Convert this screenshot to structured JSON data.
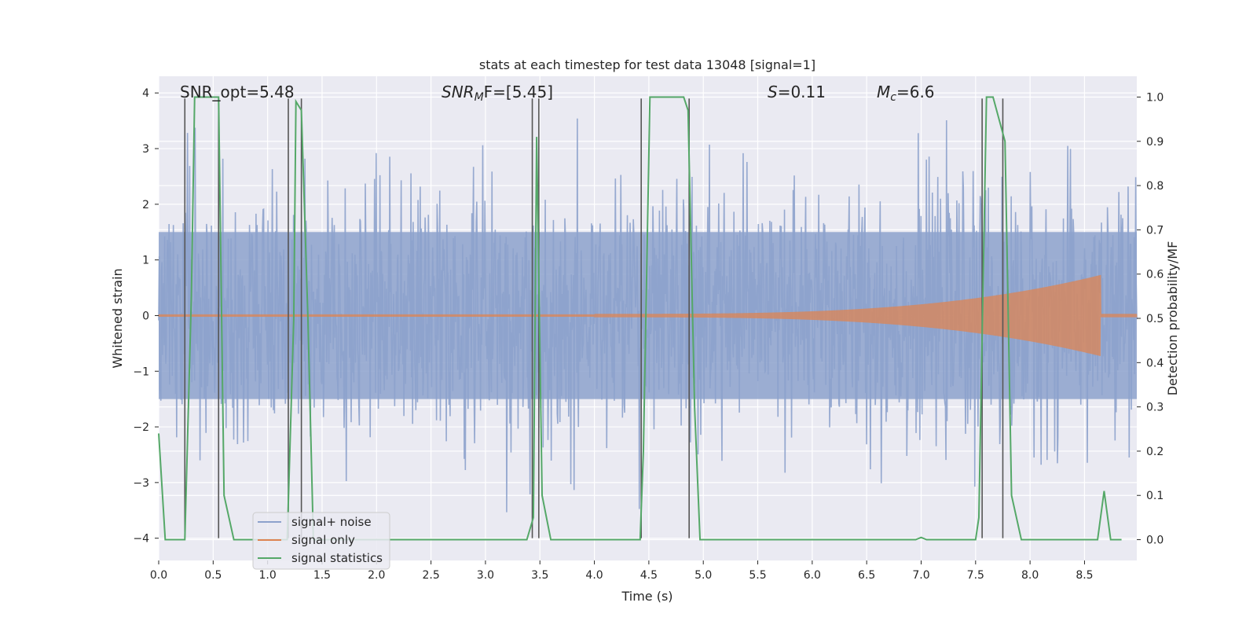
{
  "chart_data": {
    "type": "line",
    "title": "stats at each timestep for test data 13048 [signal=1]",
    "xlabel": "Time (s)",
    "ylabel": "Whitened strain",
    "y2label": "Detection probability/MF",
    "xlim": [
      0.0,
      8.98
    ],
    "ylim": [
      -4.4,
      4.3
    ],
    "y2lim": [
      -0.047,
      1.047
    ],
    "xticks": [
      "0.0",
      "0.5",
      "1.0",
      "1.5",
      "2.0",
      "2.5",
      "3.0",
      "3.5",
      "4.0",
      "4.5",
      "5.0",
      "5.5",
      "6.0",
      "6.5",
      "7.0",
      "7.5",
      "8.0",
      "8.5"
    ],
    "yticks": [
      "4",
      "3",
      "2",
      "1",
      "0",
      "−1",
      "−2",
      "−3",
      "−4"
    ],
    "y2ticks": [
      "1.0",
      "0.9",
      "0.8",
      "0.7",
      "0.6",
      "0.5",
      "0.4",
      "0.3",
      "0.2",
      "0.1",
      "0.0"
    ],
    "grid": true,
    "legend_position": "lower-left",
    "legend": [
      "signal+ noise",
      "signal only",
      "signal statistics"
    ],
    "annotations": {
      "snr_opt": "SNR_opt=5.48",
      "snr_mf_main": "SNR",
      "snr_mf_sub": "M",
      "snr_mf_rest": "F=[5.45]",
      "s_label": "S",
      "s_value": "=0.11",
      "mc_label": "M",
      "mc_sub": "c",
      "mc_value": "=6.6"
    },
    "colors": {
      "noise": "#8da2cc",
      "signal": "#dd8452",
      "statistics": "#55a868",
      "vlines": "#555555",
      "background": "#eaeaf2"
    },
    "series": [
      {
        "name": "signal+ noise",
        "description_values": "band noise ~N(0,1.1), envelope roughly ±1.5, peaks to ±3.9"
      },
      {
        "name": "signal only",
        "chirp_start": 4.0,
        "chirp_end": 8.65,
        "peak_amplitude": 0.7
      },
      {
        "name": "signal statistics",
        "x": [
          0.0,
          0.06,
          0.24,
          0.3,
          0.33,
          0.55,
          0.6,
          0.69,
          1.18,
          1.24,
          1.26,
          1.31,
          1.37,
          1.42,
          2.4,
          2.45,
          3.38,
          3.44,
          3.47,
          3.52,
          3.6,
          4.42,
          4.45,
          4.51,
          4.82,
          4.86,
          4.92,
          4.97,
          6.95,
          7.0,
          7.05,
          7.5,
          7.53,
          7.6,
          7.66,
          7.77,
          7.83,
          7.92,
          8.62,
          8.68,
          8.74,
          8.79,
          8.84
        ],
        "y": [
          0.24,
          0.0,
          0.0,
          0.55,
          1.0,
          1.0,
          0.1,
          0.0,
          0.0,
          0.5,
          0.99,
          0.97,
          0.5,
          0.0,
          0.0,
          0.0,
          0.0,
          0.05,
          0.91,
          0.1,
          0.0,
          0.0,
          0.2,
          1.0,
          1.0,
          0.97,
          0.3,
          0.0,
          0.0,
          0.005,
          0.0,
          0.0,
          0.05,
          1.0,
          1.0,
          0.9,
          0.1,
          0.0,
          0.0,
          0.11,
          0.0,
          0.0,
          0.0
        ]
      }
    ],
    "vertical_lines": [
      {
        "x": 0.24,
        "y_top": 3.9,
        "y_bottom": -4.0
      },
      {
        "x": 0.55,
        "y_top": 3.9,
        "y_bottom": -4.0
      },
      {
        "x": 1.19,
        "y_top": 3.9,
        "y_bottom": -4.0
      },
      {
        "x": 1.31,
        "y_top": 3.9,
        "y_bottom": -4.0
      },
      {
        "x": 3.43,
        "y_top": 3.9,
        "y_bottom": -4.0
      },
      {
        "x": 3.49,
        "y_top": 3.9,
        "y_bottom": -4.0
      },
      {
        "x": 4.43,
        "y_top": 3.9,
        "y_bottom": -4.0
      },
      {
        "x": 4.87,
        "y_top": 3.9,
        "y_bottom": -4.0
      },
      {
        "x": 7.56,
        "y_top": 3.9,
        "y_bottom": -4.0
      },
      {
        "x": 7.75,
        "y_top": 3.9,
        "y_bottom": -4.0
      }
    ]
  }
}
